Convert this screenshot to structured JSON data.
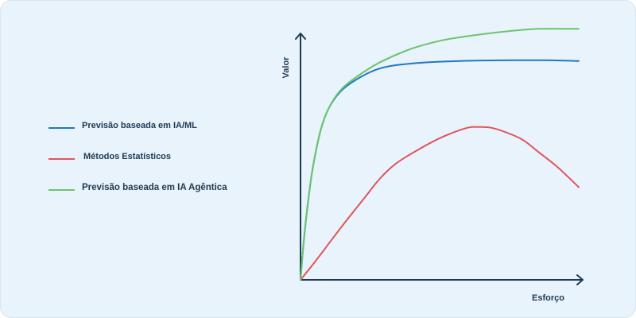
{
  "chart_data": {
    "type": "line",
    "title": "",
    "xlabel": "Esforço",
    "ylabel": "Valor",
    "grid": false,
    "legend_position": "left",
    "axis_ticks": false,
    "xlim": [
      0,
      100
    ],
    "ylim": [
      0,
      100
    ],
    "series": [
      {
        "name": "Previsão baseada em IA/ML",
        "color": "#1f78c1",
        "points": [
          [
            0,
            0
          ],
          [
            1.1,
            15
          ],
          [
            2.5,
            30
          ],
          [
            4.3,
            45
          ],
          [
            7.0,
            60
          ],
          [
            9.8,
            69
          ],
          [
            14.0,
            76
          ],
          [
            19.7,
            81
          ],
          [
            28.1,
            85.5
          ],
          [
            39.3,
            87.5
          ],
          [
            56.2,
            88.5
          ],
          [
            73.0,
            88.8
          ],
          [
            87.1,
            88.8
          ],
          [
            98.3,
            88.5
          ]
        ]
      },
      {
        "name": "Métodos Estatísticos",
        "color": "#e0545a",
        "points": [
          [
            0,
            0
          ],
          [
            5.6,
            8
          ],
          [
            11.2,
            16.5
          ],
          [
            16.9,
            25
          ],
          [
            22.5,
            33
          ],
          [
            28.1,
            41
          ],
          [
            33.7,
            47
          ],
          [
            42.1,
            53
          ],
          [
            50.6,
            58
          ],
          [
            59.0,
            61.5
          ],
          [
            62.9,
            61.8
          ],
          [
            67.4,
            61.5
          ],
          [
            73.0,
            59.5
          ],
          [
            78.7,
            56.5
          ],
          [
            84.3,
            51.5
          ],
          [
            89.9,
            46.5
          ],
          [
            93.3,
            43
          ],
          [
            98.3,
            37.5
          ]
        ]
      },
      {
        "name": "Previsão baseada em IA Agêntica",
        "color": "#6cc46c",
        "points": [
          [
            0,
            0
          ],
          [
            1.1,
            15
          ],
          [
            2.5,
            30
          ],
          [
            4.3,
            45
          ],
          [
            7.0,
            60
          ],
          [
            9.8,
            69
          ],
          [
            14.0,
            76.5
          ],
          [
            19.7,
            82
          ],
          [
            28.1,
            88
          ],
          [
            39.3,
            93.5
          ],
          [
            50.6,
            97
          ],
          [
            61.8,
            99
          ],
          [
            73.0,
            100.5
          ],
          [
            84.3,
            101.5
          ],
          [
            98.3,
            101.5
          ]
        ]
      }
    ]
  }
}
